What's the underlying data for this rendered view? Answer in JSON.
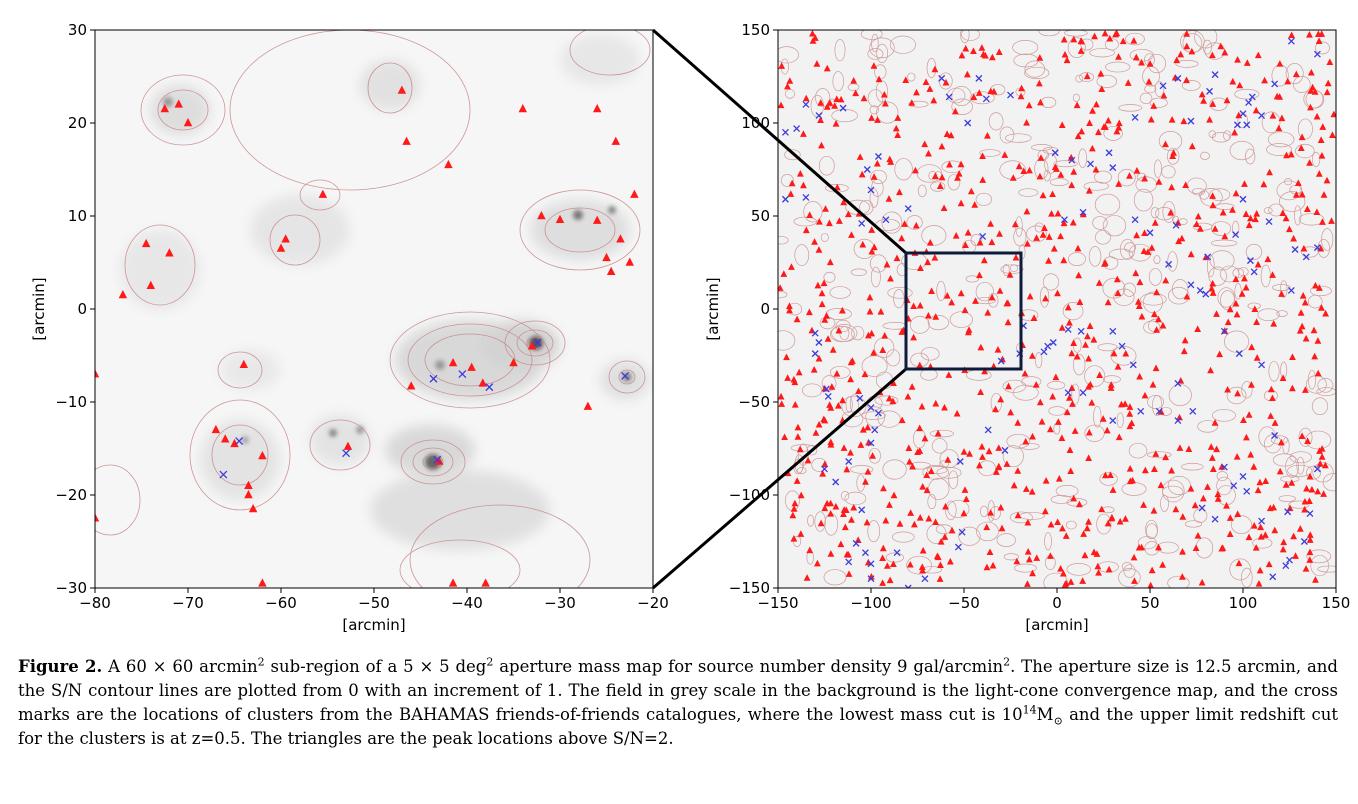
{
  "figure": {
    "panels": [
      {
        "id": "left",
        "xlabel": "[arcmin]",
        "ylabel": "[arcmin]",
        "x_ticks": [
          "−80",
          "−70",
          "−60",
          "−50",
          "−40",
          "−30",
          "−20"
        ],
        "y_ticks": [
          "30",
          "20",
          "10",
          "0",
          "−10",
          "−20",
          "−30"
        ],
        "xlim": [
          -80,
          -20
        ],
        "ylim": [
          -30,
          30
        ]
      },
      {
        "id": "right",
        "xlabel": "[arcmin]",
        "ylabel": "[arcmin]",
        "x_ticks": [
          "−150",
          "−100",
          "−50",
          "0",
          "50",
          "100",
          "150"
        ],
        "y_ticks": [
          "150",
          "100",
          "50",
          "0",
          "−50",
          "−100",
          "−150"
        ],
        "xlim": [
          -150,
          150
        ],
        "ylim": [
          -150,
          150
        ]
      }
    ],
    "colors": {
      "peak_marker": "#ff1a1a",
      "cluster_marker": "#3b3bdd",
      "contour": "#c98b8b",
      "zoom_box": "#0d1b3d",
      "background": "#f4f4f4"
    }
  },
  "chart_data": [
    {
      "type": "scatter",
      "panel": "left",
      "xlim": [
        -80,
        -20
      ],
      "ylim": [
        -30,
        30
      ],
      "series": [
        {
          "marker": "triangle",
          "points": [
            [
              -72.5,
              21.5
            ],
            [
              -71,
              22
            ],
            [
              -70,
              20
            ],
            [
              -47,
              23.5
            ],
            [
              -46.5,
              18
            ],
            [
              -42,
              15.5
            ],
            [
              -34,
              21.5
            ],
            [
              -26,
              21.5
            ],
            [
              -24,
              18
            ],
            [
              -55.5,
              12.3
            ],
            [
              -32,
              10
            ],
            [
              -30,
              9.6
            ],
            [
              -26,
              9.5
            ],
            [
              -22,
              12.3
            ],
            [
              -74.5,
              7
            ],
            [
              -59.5,
              7.5
            ],
            [
              -60,
              6.5
            ],
            [
              -72,
              6
            ],
            [
              -23.5,
              7.5
            ],
            [
              -25,
              5.5
            ],
            [
              -22.5,
              5
            ],
            [
              -24.5,
              4
            ],
            [
              -74,
              2.5
            ],
            [
              -77,
              1.5
            ],
            [
              -41.5,
              -5.8
            ],
            [
              -39.5,
              -6.3
            ],
            [
              -35,
              -5.8
            ],
            [
              -38.3,
              -8
            ],
            [
              -46,
              -8.3
            ],
            [
              -33,
              -4
            ],
            [
              -27,
              -10.5
            ],
            [
              -64,
              -6
            ],
            [
              -80,
              -7
            ],
            [
              -67,
              -13
            ],
            [
              -66,
              -14
            ],
            [
              -65,
              -14.5
            ],
            [
              -52.8,
              -14.8
            ],
            [
              -62,
              -15.8
            ],
            [
              -63.5,
              -19
            ],
            [
              -63.5,
              -20
            ],
            [
              -63,
              -21.5
            ],
            [
              -62,
              -29.5
            ],
            [
              -41.5,
              -29.5
            ],
            [
              -38,
              -29.5
            ],
            [
              -80,
              -22.5
            ],
            [
              -43,
              -16.4
            ]
          ]
        },
        {
          "marker": "cross",
          "points": [
            [
              -64.5,
              -14.2
            ],
            [
              -66.2,
              -17.8
            ],
            [
              -53,
              -15.5
            ],
            [
              -43.2,
              -16.2
            ],
            [
              -43.6,
              -7.5
            ],
            [
              -40.5,
              -7
            ],
            [
              -37.6,
              -8.4
            ],
            [
              -32.4,
              -3.6
            ],
            [
              -23,
              -7.2
            ]
          ]
        }
      ]
    },
    {
      "type": "scatter",
      "panel": "right",
      "xlim": [
        -150,
        150
      ],
      "ylim": [
        -150,
        150
      ],
      "note_series": "dense red triangle peaks and blue cross cluster marks across the full field",
      "series": [
        {
          "marker": "cross",
          "points": [
            [
              -146,
              95
            ],
            [
              -140,
              97
            ],
            [
              -135,
              110
            ],
            [
              -128,
              104
            ],
            [
              -115,
              108
            ],
            [
              -102,
              75
            ],
            [
              -100,
              64
            ],
            [
              -96,
              82
            ],
            [
              -92,
              48
            ],
            [
              -146,
              59
            ],
            [
              -135,
              60
            ],
            [
              -105,
              46
            ],
            [
              -80,
              54
            ],
            [
              -62,
              124
            ],
            [
              -58,
              114
            ],
            [
              -48,
              100
            ],
            [
              -42,
              124
            ],
            [
              -38,
              113
            ],
            [
              -25,
              115
            ],
            [
              -1,
              84
            ],
            [
              8,
              80
            ],
            [
              18,
              78
            ],
            [
              28,
              84
            ],
            [
              30,
              76
            ],
            [
              42,
              103
            ],
            [
              57,
              120
            ],
            [
              65,
              124
            ],
            [
              72,
              101
            ],
            [
              82,
              117
            ],
            [
              85,
              126
            ],
            [
              102,
              99
            ],
            [
              103,
              111
            ],
            [
              105,
              114
            ],
            [
              110,
              104
            ],
            [
              117,
              121
            ],
            [
              97,
              99
            ],
            [
              100,
              105
            ],
            [
              126,
              144
            ],
            [
              140,
              137
            ],
            [
              -40,
              39
            ],
            [
              4,
              48
            ],
            [
              14,
              52
            ],
            [
              42,
              48
            ],
            [
              50,
              41
            ],
            [
              64,
              45
            ],
            [
              81,
              28
            ],
            [
              96,
              40
            ],
            [
              100,
              59
            ],
            [
              114,
              47
            ],
            [
              128,
              32
            ],
            [
              134,
              28
            ],
            [
              140,
              33
            ],
            [
              60,
              24
            ],
            [
              72,
              13
            ],
            [
              77,
              10
            ],
            [
              80,
              8
            ],
            [
              104,
              26
            ],
            [
              106,
              20
            ],
            [
              126,
              10
            ],
            [
              -130,
              -13
            ],
            [
              -128,
              -18
            ],
            [
              -130,
              -24
            ],
            [
              -124,
              -43
            ],
            [
              -123,
              -47
            ],
            [
              -106,
              -48
            ],
            [
              -100,
              -53
            ],
            [
              -96,
              -56
            ],
            [
              -98,
              -65
            ],
            [
              -100,
              -72
            ],
            [
              -112,
              -82
            ],
            [
              -125,
              -86
            ],
            [
              -119,
              -93
            ],
            [
              -105,
              -108
            ],
            [
              -108,
              -126
            ],
            [
              -103,
              -131
            ],
            [
              -100,
              -137
            ],
            [
              -112,
              -136
            ],
            [
              -100,
              -145
            ],
            [
              -80,
              -150
            ],
            [
              -86,
              -131
            ],
            [
              -71,
              -145
            ],
            [
              -51,
              -120
            ],
            [
              -53,
              -128
            ],
            [
              -52,
              -82
            ],
            [
              -37,
              -65
            ],
            [
              -28,
              -76
            ],
            [
              -30,
              -28
            ],
            [
              -20,
              -24
            ],
            [
              -18,
              -9
            ],
            [
              -5,
              -20
            ],
            [
              6,
              -11
            ],
            [
              13,
              -12
            ],
            [
              30,
              -12
            ],
            [
              35,
              -20
            ],
            [
              41,
              -30
            ],
            [
              -2,
              -18
            ],
            [
              6,
              -45
            ],
            [
              14,
              -45
            ],
            [
              30,
              -60
            ],
            [
              55,
              -55
            ],
            [
              65,
              -60
            ],
            [
              73,
              -55
            ],
            [
              90,
              -85
            ],
            [
              100,
              -90
            ],
            [
              102,
              -98
            ],
            [
              117,
              -68
            ],
            [
              95,
              -95
            ],
            [
              78,
              -107
            ],
            [
              85,
              -113
            ],
            [
              110,
              -114
            ],
            [
              124,
              -109
            ],
            [
              136,
              -110
            ],
            [
              133,
              -125
            ],
            [
              125,
              -135
            ],
            [
              123,
              -138
            ],
            [
              116,
              -144
            ],
            [
              140,
              -86
            ],
            [
              -7,
              -23
            ],
            [
              45,
              -55
            ],
            [
              65,
              -40
            ],
            [
              90,
              -12
            ],
            [
              98,
              -24
            ],
            [
              110,
              -30
            ]
          ]
        }
      ]
    }
  ],
  "caption": {
    "label": "Figure 2.",
    "seg1": " A 60 × 60 arcmin",
    "sup1": "2",
    "seg2": " sub-region of a 5 × 5 deg",
    "sup2": "2",
    "seg3": " aperture mass map for source number density 9 gal/arcmin",
    "sup3": "2",
    "seg4": ". The aperture size is 12.5 arcmin, and the S/N contour lines are plotted from 0 with an increment of 1. The field in grey scale in the background is the light-cone convergence map, and the cross marks are the locations of clusters from the BAHAMAS friends-of-friends catalogues, where the lowest mass cut is 10",
    "sup4": "14",
    "seg5": "M",
    "sub5": "⊙",
    "seg6": " and the upper limit redshift cut for the clusters is at z=0.5. The triangles are the peak locations above S/N=2."
  }
}
